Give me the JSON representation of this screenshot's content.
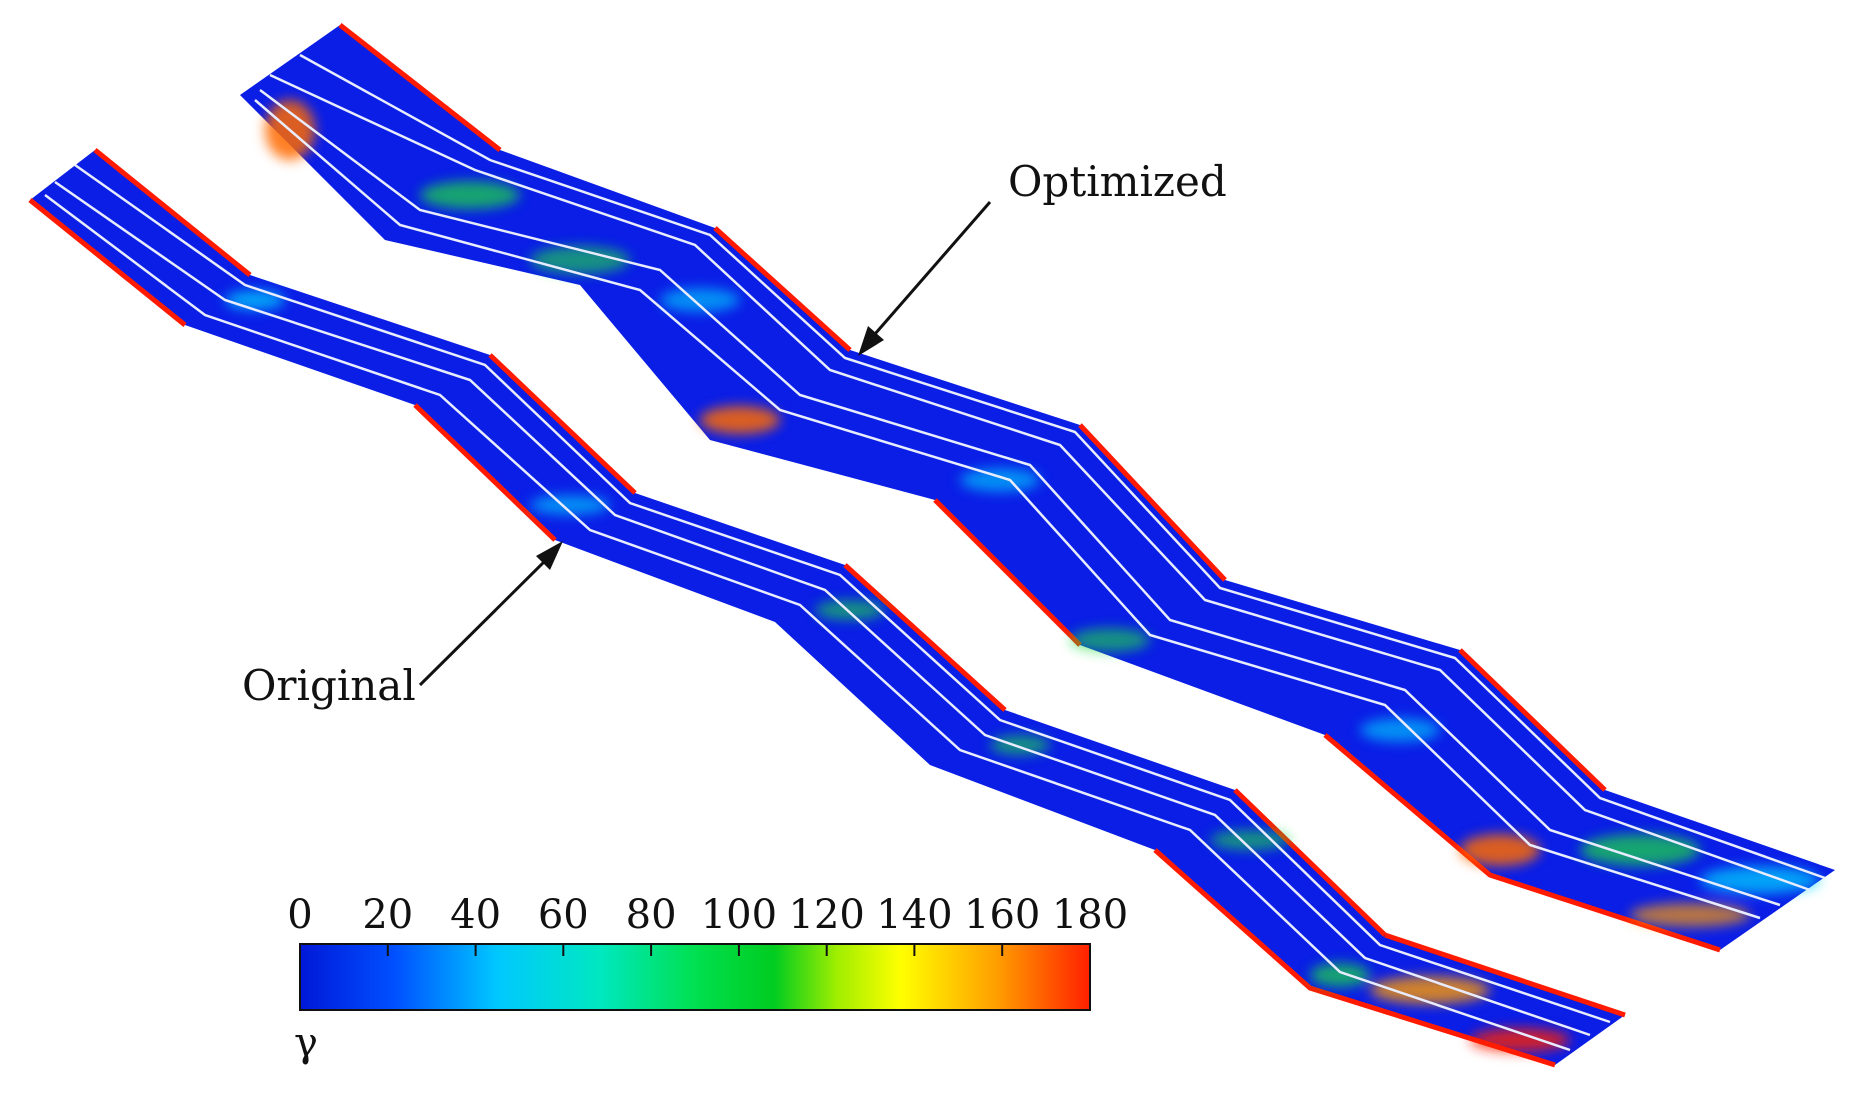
{
  "annotations": {
    "optimized_label": "Optimized",
    "original_label": "Original"
  },
  "colorbar": {
    "symbol": "γ",
    "ticks": [
      "0",
      "20",
      "40",
      "60",
      "80",
      "100",
      "120",
      "140",
      "160",
      "180"
    ],
    "min": 0,
    "max": 180,
    "colormap": [
      "#0018d8",
      "#0050ff",
      "#00c8ff",
      "#00e8c0",
      "#00e050",
      "#00cc20",
      "#a0ee00",
      "#ffff00",
      "#ffa000",
      "#ff2000"
    ]
  },
  "colors": {
    "field_base": "#0a1ee6",
    "streamline": "#e8ecff",
    "edge_hot": "#ff1a00",
    "edge_warm": "#ff9a00",
    "mid_cyan": "#00d8ff",
    "mid_green": "#20dd40"
  }
}
